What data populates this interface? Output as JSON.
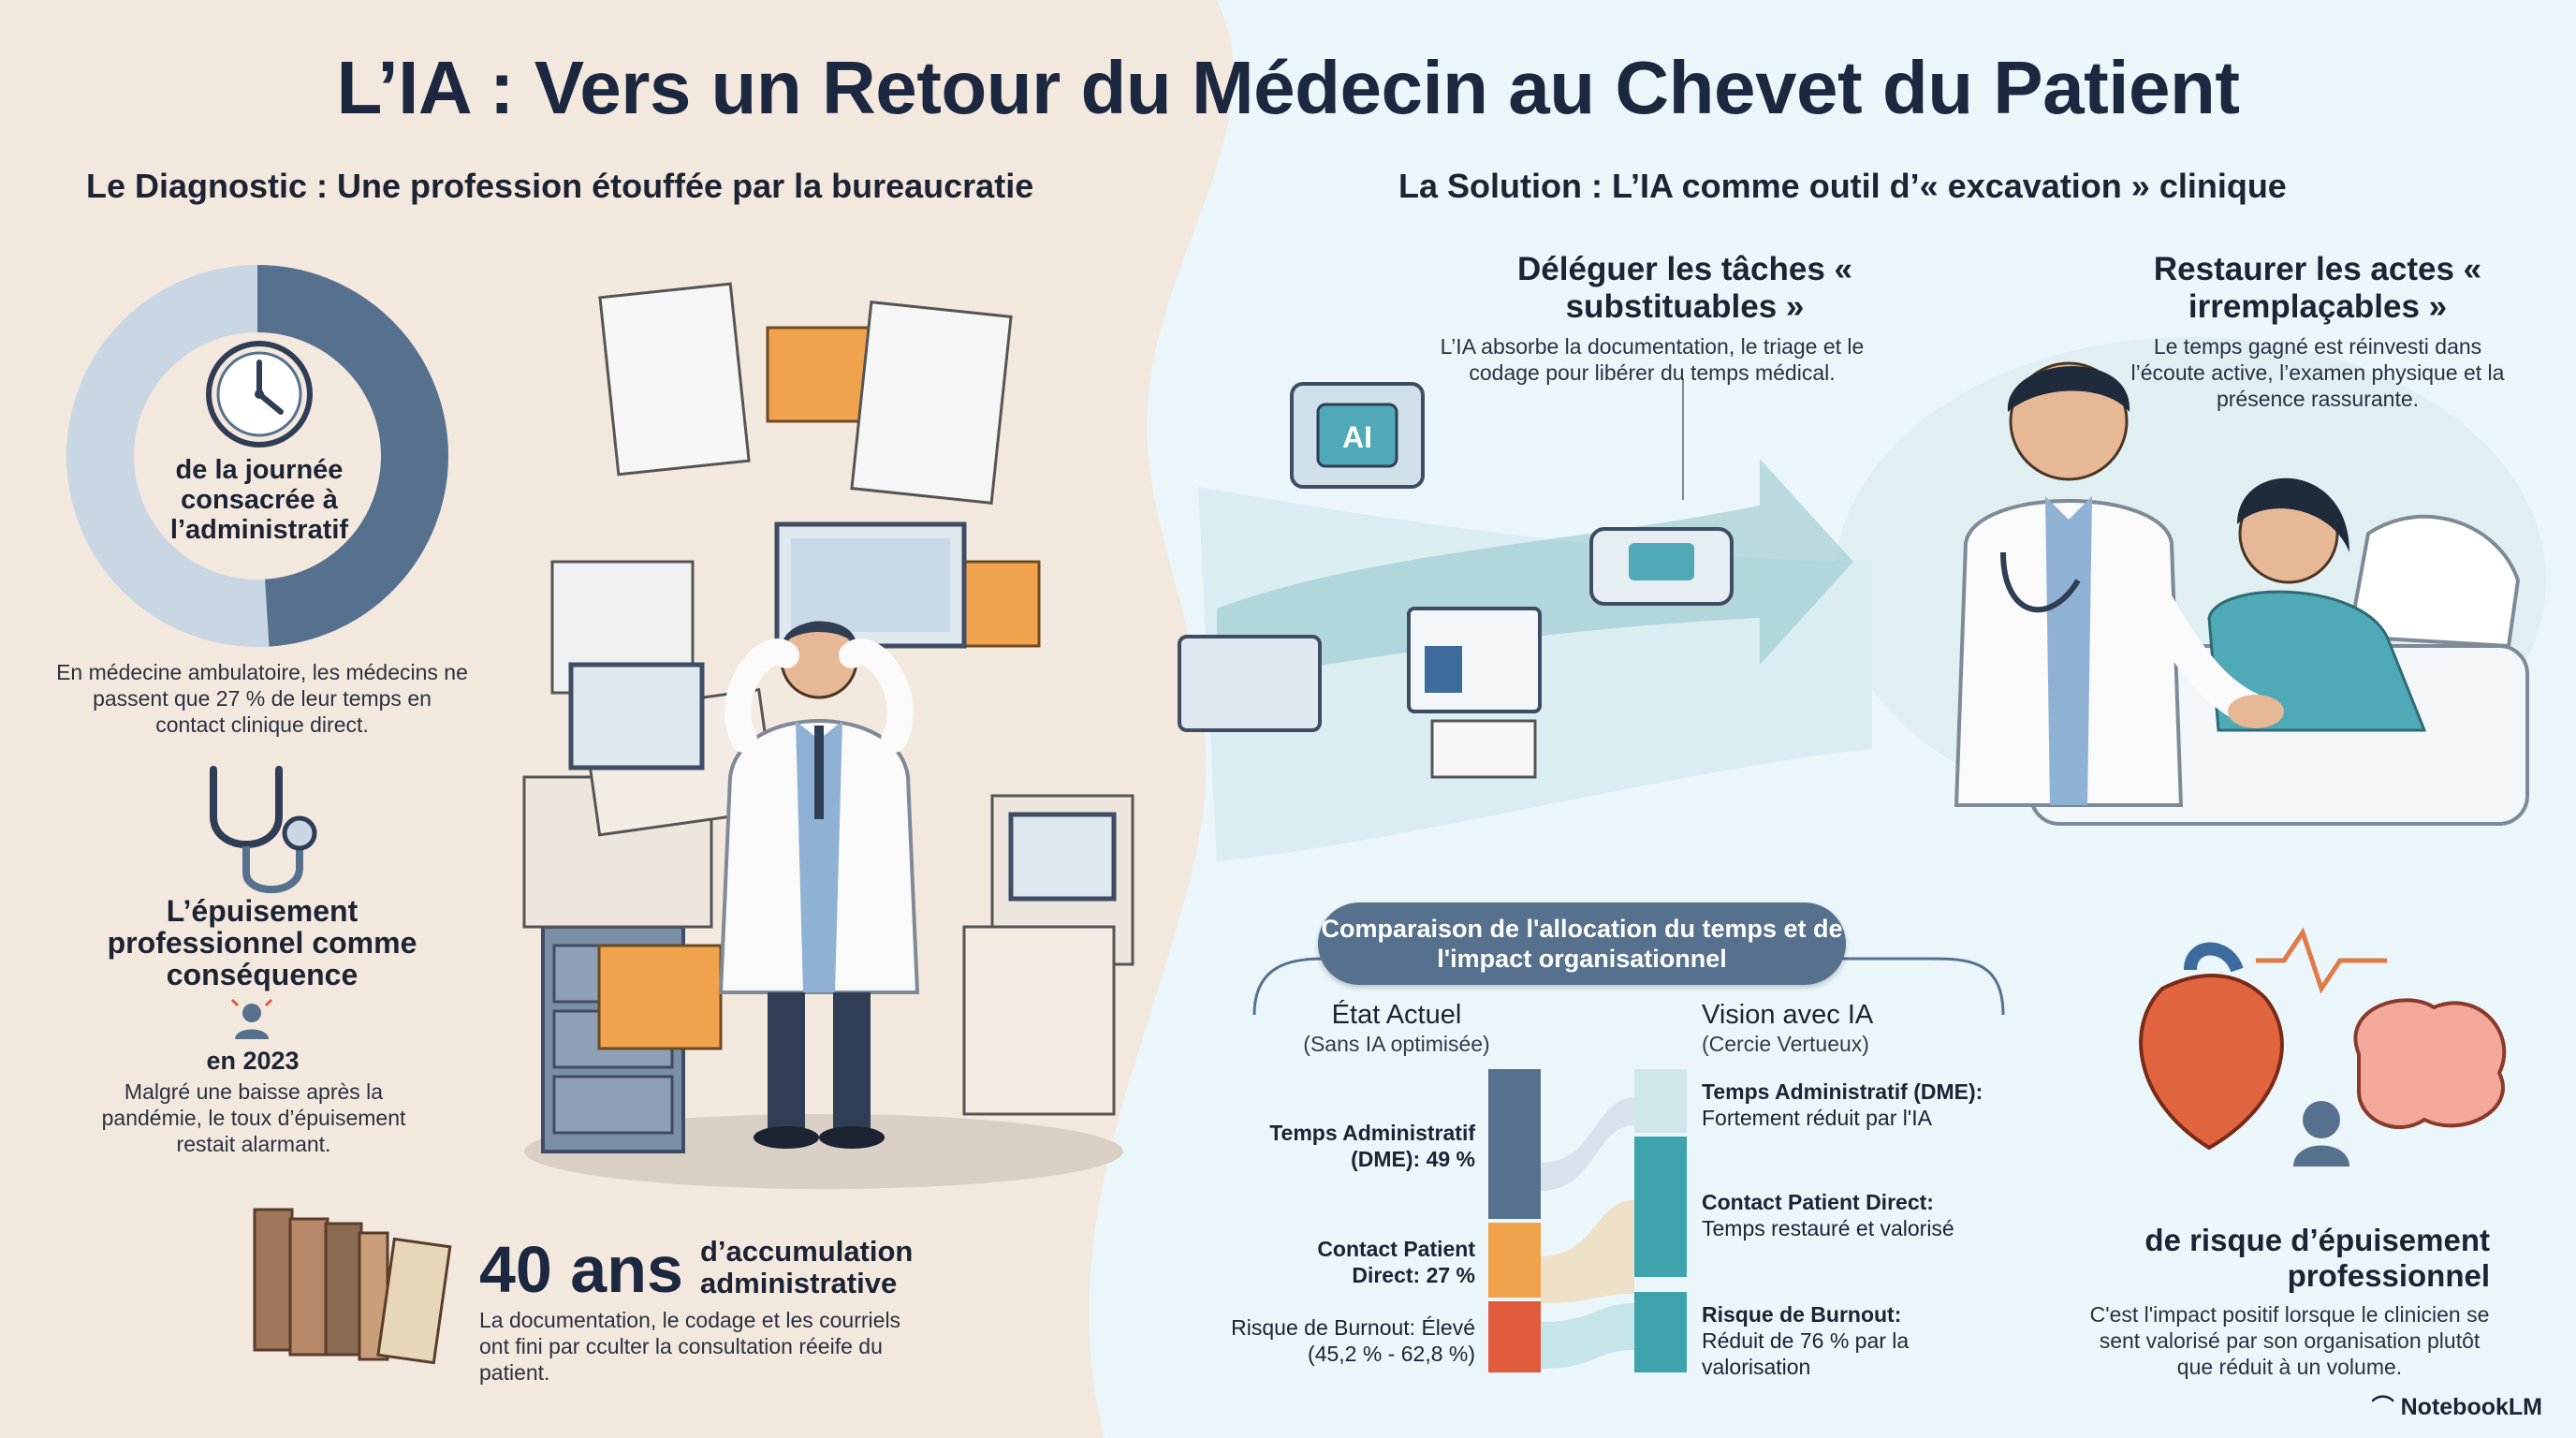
{
  "title": "L’IA : Vers un Retour du Médecin au Chevet du Patient",
  "left": {
    "heading": "Le Diagnostic : Une profession étouffée par la bureaucratie",
    "donut": {
      "label": "de la journée consacrée à l’administratif",
      "admin_fraction": 0.49,
      "colors": {
        "filled": "#56718e",
        "rest": "#c9d6e4"
      }
    },
    "ambulatory_text": "En médecine ambulatoire, les médecins ne passent que 27 % de leur temps en contact clinique direct.",
    "burnout": {
      "heading": "L’épuisement professionnel comme conséquence",
      "year": "en 2023",
      "text": "Malgré une baisse après la pandémie, le toux d’épuisement restait alarmant."
    },
    "accumulation": {
      "big": "40 ans",
      "label": "d’accumulation administrative",
      "text": "La documentation, le codage et les courriels ont fini par cculter la consultation réeife du patient."
    }
  },
  "right": {
    "heading": "La Solution : L’IA comme outil d’« excavation » clinique",
    "delegate": {
      "heading": "Déléguer les tâches « substituables »",
      "text": "L’IA absorbe la documentation, le triage et le codage pour libérer du temps médical."
    },
    "restore": {
      "heading": "Restaurer les actes « irremplaçables »",
      "text": "Le temps gagné est réinvesti dans l’écoute active, l’examen physique et la présence rassurante."
    },
    "chip_label": "AI",
    "comparison": {
      "pill": "Comparaison de l'allocation du temps et de l'impact organisationnel",
      "current": {
        "title": "État Actuel",
        "subtitle": "(Sans IA optimisée)",
        "items": [
          {
            "name": "Temps Administratif (DME): 49 %",
            "color": "#56718e"
          },
          {
            "name": "Contact Patient Direct: 27 %",
            "color": "#f0a34a"
          },
          {
            "name": "Risque de Burnout: Élevé (45,2 % - 62,8 %)",
            "color": "#e05a3c"
          }
        ]
      },
      "vision": {
        "title": "Vision avec IA",
        "subtitle": "(Cercie Vertueux)",
        "items": [
          {
            "name": "Temps Administratif (DME):",
            "desc": "Fortement réduit par l'IA",
            "color": "#cfe6ea"
          },
          {
            "name": "Contact Patient Direct:",
            "desc": "Temps restauré et valorisé",
            "color": "#3ea3ad"
          },
          {
            "name": "Risque de Burnout:",
            "desc": "Réduit de 76 % par la valorisation",
            "color": "#3ea3ad"
          }
        ]
      }
    },
    "risk": {
      "heading": "de risque d’épuisement professionnel",
      "text": "C'est l'impact positif lorsque le clinicien se sent valorisé par son organisation plutôt que réduit à un volume."
    }
  },
  "brand": "NotebookLM"
}
